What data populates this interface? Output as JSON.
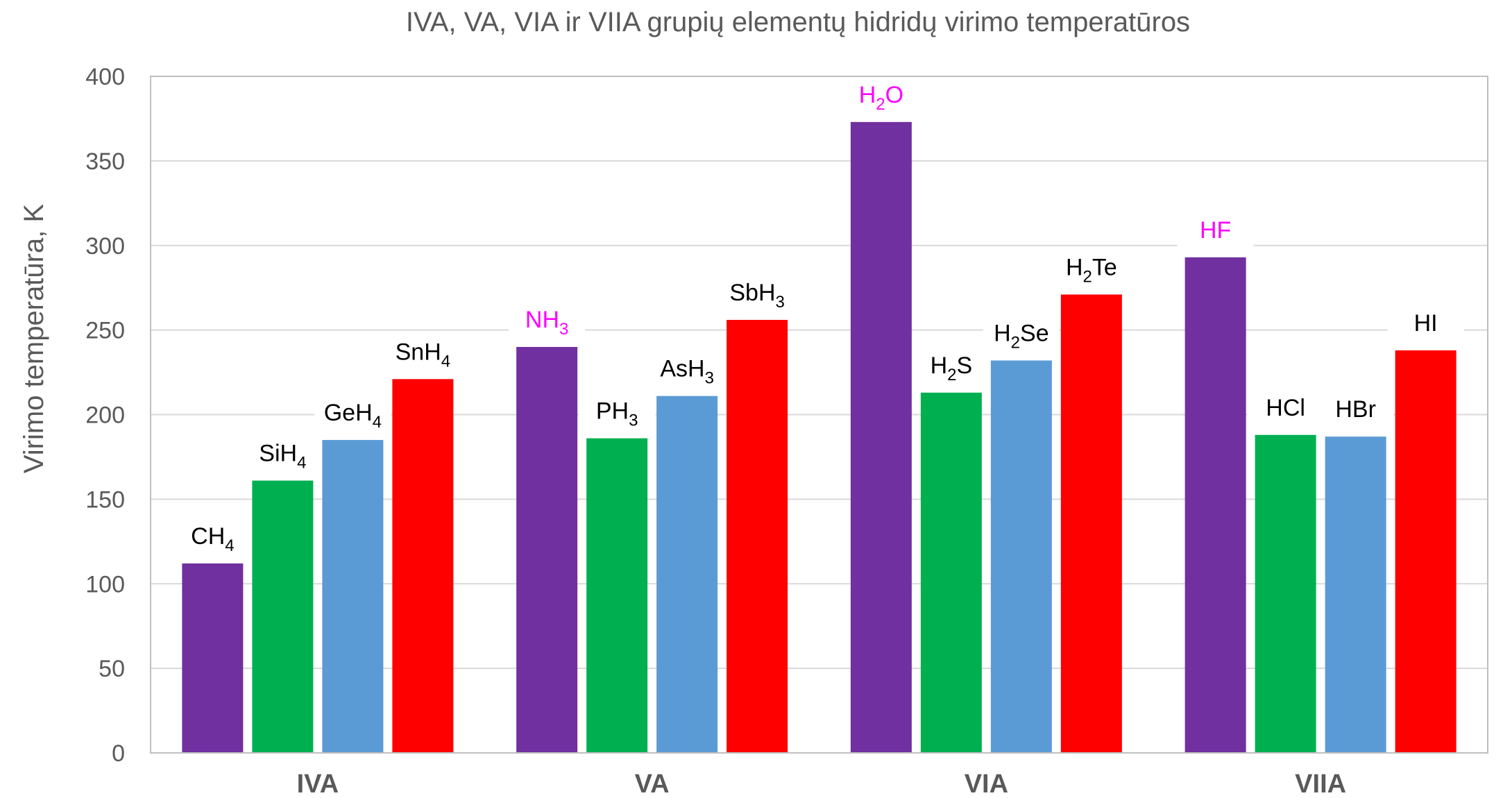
{
  "chart_data": {
    "type": "bar",
    "title": "IVA, VA, VIA ir VIIA grupių elementų hidridų virimo temperatūros",
    "xlabel": "",
    "ylabel": "Virimo temperatūra, K",
    "ylim": [
      0,
      400
    ],
    "yticks": [
      "0",
      "50",
      "100",
      "150",
      "200",
      "250",
      "300",
      "350",
      "400"
    ],
    "grid": true,
    "legend": "none",
    "groups": [
      {
        "name": "IVA",
        "bars": [
          {
            "label": [
              "CH",
              "4",
              ""
            ],
            "value": 112,
            "color": "#7030a0",
            "label_color": "#000000"
          },
          {
            "label": [
              "SiH",
              "4",
              ""
            ],
            "value": 161,
            "color": "#00b050",
            "label_color": "#000000"
          },
          {
            "label": [
              "GeH",
              "4",
              ""
            ],
            "value": 185,
            "color": "#5b9bd5",
            "label_color": "#000000"
          },
          {
            "label": [
              "SnH",
              "4",
              ""
            ],
            "value": 221,
            "color": "#ff0000",
            "label_color": "#000000"
          }
        ]
      },
      {
        "name": "VA",
        "bars": [
          {
            "label": [
              "NH",
              "3",
              ""
            ],
            "value": 240,
            "color": "#7030a0",
            "label_color": "#ff00ff"
          },
          {
            "label": [
              "PH",
              "3",
              ""
            ],
            "value": 186,
            "color": "#00b050",
            "label_color": "#000000"
          },
          {
            "label": [
              "AsH",
              "3",
              ""
            ],
            "value": 211,
            "color": "#5b9bd5",
            "label_color": "#000000"
          },
          {
            "label": [
              "SbH",
              "3",
              ""
            ],
            "value": 256,
            "color": "#ff0000",
            "label_color": "#000000"
          }
        ]
      },
      {
        "name": "VIA",
        "bars": [
          {
            "label": [
              "H",
              "2",
              "O"
            ],
            "value": 373,
            "color": "#7030a0",
            "label_color": "#ff00ff"
          },
          {
            "label": [
              "H",
              "2",
              "S"
            ],
            "value": 213,
            "color": "#00b050",
            "label_color": "#000000"
          },
          {
            "label": [
              "H",
              "2",
              "Se"
            ],
            "value": 232,
            "color": "#5b9bd5",
            "label_color": "#000000"
          },
          {
            "label": [
              "H",
              "2",
              "Te"
            ],
            "value": 271,
            "color": "#ff0000",
            "label_color": "#000000"
          }
        ]
      },
      {
        "name": "VIIA",
        "bars": [
          {
            "label": [
              "HF",
              "",
              ""
            ],
            "value": 293,
            "color": "#7030a0",
            "label_color": "#ff00ff"
          },
          {
            "label": [
              "HCl",
              "",
              ""
            ],
            "value": 188,
            "color": "#00b050",
            "label_color": "#000000"
          },
          {
            "label": [
              "HBr",
              "",
              ""
            ],
            "value": 187,
            "color": "#5b9bd5",
            "label_color": "#000000"
          },
          {
            "label": [
              "HI",
              "",
              ""
            ],
            "value": 238,
            "color": "#ff0000",
            "label_color": "#000000"
          }
        ]
      }
    ]
  }
}
